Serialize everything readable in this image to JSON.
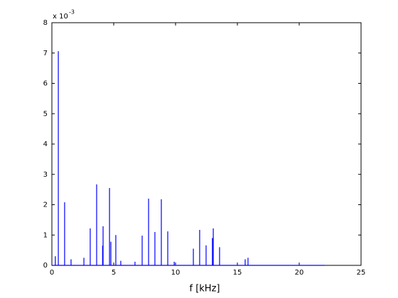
{
  "chart_data": {
    "type": "spike",
    "xlabel": "f [kHz]",
    "y_multiplier": "x 10",
    "y_exponent": "-3",
    "color": "#0000ff",
    "x": [
      0,
      0.28,
      0.52,
      1.03,
      1.55,
      2.59,
      3.1,
      3.62,
      4.1,
      4.14,
      4.66,
      4.77,
      5.17,
      5.57,
      6.72,
      7.3,
      7.82,
      8.33,
      8.85,
      9.37,
      9.89,
      11.44,
      11.95,
      12.47,
      12.98,
      13.05,
      13.56,
      15.63,
      15.86,
      22.05
    ],
    "values": [
      0,
      0.3,
      7.06,
      2.08,
      0.2,
      0.25,
      1.22,
      2.67,
      0.65,
      1.29,
      2.55,
      0.78,
      1.0,
      0.15,
      0.12,
      0.98,
      2.2,
      1.1,
      2.18,
      1.12,
      0.12,
      0.55,
      1.17,
      0.66,
      0.9,
      1.22,
      0.6,
      0.2,
      0.25,
      0
    ],
    "xlim": [
      0,
      25
    ],
    "xticks": [
      0,
      5,
      10,
      15,
      20,
      25
    ],
    "ylim": [
      0,
      8
    ],
    "yticks": [
      0,
      1,
      2,
      3,
      4,
      5,
      6,
      7,
      8
    ]
  }
}
